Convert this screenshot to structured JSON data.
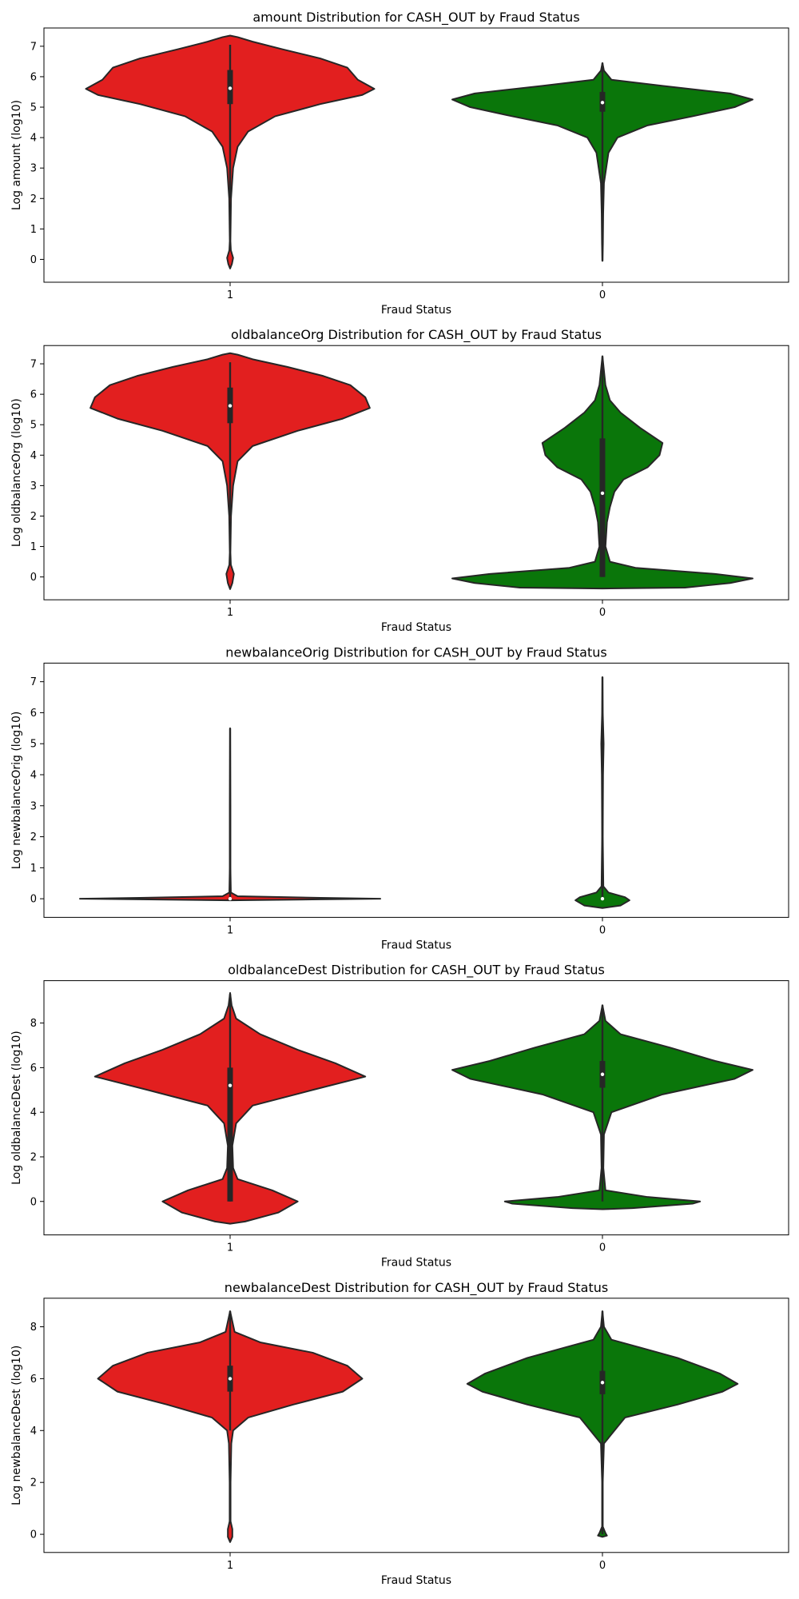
{
  "colors": {
    "fraud": "#e21f1f",
    "legit": "#0a760a",
    "edge": "#262626"
  },
  "chart_data": [
    {
      "type": "violin",
      "title": "amount Distribution for CASH_OUT by Fraud Status",
      "xlabel": "Fraud Status",
      "ylabel": "Log amount (log10)",
      "categories": [
        "1",
        "0"
      ],
      "ylim": [
        -0.75,
        7.6
      ],
      "yticks": [
        0,
        1,
        2,
        3,
        4,
        5,
        6,
        7
      ],
      "series": [
        {
          "category": "1",
          "color": "#e21f1f",
          "q1": 5.1,
          "median": 5.62,
          "q3": 6.22,
          "whisker_low": 2.0,
          "whisker_high": 7.05,
          "profile": [
            [
              -0.3,
              0.0
            ],
            [
              -0.15,
              0.012
            ],
            [
              0.05,
              0.02
            ],
            [
              0.3,
              0.005
            ],
            [
              0.6,
              0.002
            ],
            [
              2.0,
              0.006
            ],
            [
              3.0,
              0.02
            ],
            [
              3.7,
              0.05
            ],
            [
              4.2,
              0.12
            ],
            [
              4.7,
              0.3
            ],
            [
              5.1,
              0.6
            ],
            [
              5.4,
              0.88
            ],
            [
              5.6,
              0.96
            ],
            [
              5.9,
              0.85
            ],
            [
              6.3,
              0.78
            ],
            [
              6.6,
              0.6
            ],
            [
              6.9,
              0.35
            ],
            [
              7.15,
              0.15
            ],
            [
              7.3,
              0.05
            ],
            [
              7.35,
              0.0
            ]
          ]
        },
        {
          "category": "0",
          "color": "#0a760a",
          "q1": 4.85,
          "median": 5.15,
          "q3": 5.5,
          "whisker_low": -0.05,
          "whisker_high": 6.45,
          "profile": [
            [
              -0.05,
              0.0
            ],
            [
              0.5,
              0.003
            ],
            [
              1.5,
              0.005
            ],
            [
              2.5,
              0.01
            ],
            [
              3.5,
              0.04
            ],
            [
              4.0,
              0.1
            ],
            [
              4.4,
              0.3
            ],
            [
              4.7,
              0.6
            ],
            [
              5.0,
              0.88
            ],
            [
              5.25,
              1.0
            ],
            [
              5.45,
              0.85
            ],
            [
              5.7,
              0.4
            ],
            [
              5.9,
              0.06
            ],
            [
              6.2,
              0.01
            ],
            [
              6.45,
              0.0
            ]
          ]
        }
      ]
    },
    {
      "type": "violin",
      "title": "oldbalanceOrg Distribution for CASH_OUT by Fraud Status",
      "xlabel": "Fraud Status",
      "ylabel": "Log oldbalanceOrg (log10)",
      "categories": [
        "1",
        "0"
      ],
      "ylim": [
        -0.75,
        7.6
      ],
      "yticks": [
        0,
        1,
        2,
        3,
        4,
        5,
        6,
        7
      ],
      "series": [
        {
          "category": "1",
          "color": "#e21f1f",
          "q1": 5.05,
          "median": 5.62,
          "q3": 6.22,
          "whisker_low": 2.0,
          "whisker_high": 7.05,
          "profile": [
            [
              -0.4,
              0.0
            ],
            [
              -0.2,
              0.015
            ],
            [
              0.1,
              0.025
            ],
            [
              0.4,
              0.005
            ],
            [
              0.8,
              0.002
            ],
            [
              2.0,
              0.006
            ],
            [
              3.0,
              0.02
            ],
            [
              3.8,
              0.05
            ],
            [
              4.3,
              0.15
            ],
            [
              4.8,
              0.45
            ],
            [
              5.2,
              0.75
            ],
            [
              5.55,
              0.93
            ],
            [
              5.9,
              0.9
            ],
            [
              6.3,
              0.8
            ],
            [
              6.6,
              0.62
            ],
            [
              6.9,
              0.38
            ],
            [
              7.15,
              0.15
            ],
            [
              7.3,
              0.05
            ],
            [
              7.35,
              0.0
            ]
          ]
        },
        {
          "category": "0",
          "color": "#0a760a",
          "q1": 0.0,
          "median": 2.75,
          "q3": 4.55,
          "whisker_low": 0.0,
          "whisker_high": 7.25,
          "profile": [
            [
              -0.38,
              0.0
            ],
            [
              -0.35,
              0.55
            ],
            [
              -0.2,
              0.85
            ],
            [
              -0.05,
              1.0
            ],
            [
              0.1,
              0.75
            ],
            [
              0.3,
              0.22
            ],
            [
              0.5,
              0.05
            ],
            [
              1.0,
              0.02
            ],
            [
              1.8,
              0.03
            ],
            [
              2.3,
              0.05
            ],
            [
              2.8,
              0.08
            ],
            [
              3.2,
              0.14
            ],
            [
              3.6,
              0.3
            ],
            [
              4.0,
              0.38
            ],
            [
              4.4,
              0.4
            ],
            [
              4.9,
              0.25
            ],
            [
              5.4,
              0.12
            ],
            [
              5.8,
              0.05
            ],
            [
              6.3,
              0.02
            ],
            [
              7.25,
              0.0
            ]
          ]
        }
      ]
    },
    {
      "type": "violin",
      "title": "newbalanceOrig Distribution for CASH_OUT by Fraud Status",
      "xlabel": "Fraud Status",
      "ylabel": "Log newbalanceOrig (log10)",
      "categories": [
        "1",
        "0"
      ],
      "ylim": [
        -0.6,
        7.6
      ],
      "yticks": [
        0,
        1,
        2,
        3,
        4,
        5,
        6,
        7
      ],
      "series": [
        {
          "category": "1",
          "color": "#e21f1f",
          "q1": 0.0,
          "median": 0.0,
          "q3": 0.0,
          "whisker_low": 0.0,
          "whisker_high": 5.5,
          "profile": [
            [
              -0.05,
              0.0
            ],
            [
              -0.02,
              0.6
            ],
            [
              0.0,
              1.0
            ],
            [
              0.03,
              0.6
            ],
            [
              0.08,
              0.05
            ],
            [
              0.2,
              0.005
            ],
            [
              1.0,
              0.002
            ],
            [
              3.0,
              0.002
            ],
            [
              5.5,
              0.0
            ]
          ]
        },
        {
          "category": "0",
          "color": "#0a760a",
          "q1": 0.0,
          "median": 0.0,
          "q3": 0.0,
          "whisker_low": 0.0,
          "whisker_high": 7.15,
          "profile": [
            [
              -0.3,
              0.0
            ],
            [
              -0.22,
              0.12
            ],
            [
              -0.05,
              0.18
            ],
            [
              0.05,
              0.15
            ],
            [
              0.2,
              0.04
            ],
            [
              0.4,
              0.006
            ],
            [
              2.0,
              0.002
            ],
            [
              4.0,
              0.004
            ],
            [
              5.0,
              0.008
            ],
            [
              6.0,
              0.002
            ],
            [
              7.15,
              0.0
            ]
          ]
        }
      ]
    },
    {
      "type": "violin",
      "title": "oldbalanceDest Distribution for CASH_OUT by Fraud Status",
      "xlabel": "Fraud Status",
      "ylabel": "Log oldbalanceDest (log10)",
      "categories": [
        "1",
        "0"
      ],
      "ylim": [
        -1.5,
        9.9
      ],
      "yticks": [
        0,
        2,
        4,
        6,
        8
      ],
      "series": [
        {
          "category": "1",
          "color": "#e21f1f",
          "q1": 0.0,
          "median": 5.2,
          "q3": 6.0,
          "whisker_low": 0.0,
          "whisker_high": 9.3,
          "profile": [
            [
              -1.0,
              0.0
            ],
            [
              -0.9,
              0.1
            ],
            [
              -0.5,
              0.32
            ],
            [
              0.0,
              0.45
            ],
            [
              0.5,
              0.28
            ],
            [
              1.0,
              0.05
            ],
            [
              1.5,
              0.02
            ],
            [
              2.5,
              0.015
            ],
            [
              3.5,
              0.04
            ],
            [
              4.3,
              0.15
            ],
            [
              5.0,
              0.55
            ],
            [
              5.6,
              0.9
            ],
            [
              6.2,
              0.7
            ],
            [
              6.8,
              0.45
            ],
            [
              7.5,
              0.2
            ],
            [
              8.2,
              0.04
            ],
            [
              8.8,
              0.01
            ],
            [
              9.35,
              0.0
            ]
          ]
        },
        {
          "category": "0",
          "color": "#0a760a",
          "q1": 5.1,
          "median": 5.7,
          "q3": 6.3,
          "whisker_low": 0.0,
          "whisker_high": 8.8,
          "profile": [
            [
              -0.35,
              0.0
            ],
            [
              -0.3,
              0.2
            ],
            [
              -0.1,
              0.6
            ],
            [
              0.0,
              0.65
            ],
            [
              0.2,
              0.3
            ],
            [
              0.5,
              0.02
            ],
            [
              1.5,
              0.006
            ],
            [
              3.0,
              0.01
            ],
            [
              4.0,
              0.06
            ],
            [
              4.8,
              0.4
            ],
            [
              5.5,
              0.88
            ],
            [
              5.9,
              1.0
            ],
            [
              6.3,
              0.75
            ],
            [
              6.9,
              0.45
            ],
            [
              7.5,
              0.12
            ],
            [
              8.1,
              0.02
            ],
            [
              8.8,
              0.0
            ]
          ]
        }
      ]
    },
    {
      "type": "violin",
      "title": "newbalanceDest Distribution for CASH_OUT by Fraud Status",
      "xlabel": "Fraud Status",
      "ylabel": "Log newbalanceDest (log10)",
      "categories": [
        "1",
        "0"
      ],
      "ylim": [
        -0.7,
        9.1
      ],
      "yticks": [
        0,
        2,
        4,
        6,
        8
      ],
      "series": [
        {
          "category": "1",
          "color": "#e21f1f",
          "q1": 5.5,
          "median": 6.0,
          "q3": 6.5,
          "whisker_low": 4.0,
          "whisker_high": 8.6,
          "profile": [
            [
              -0.3,
              0.0
            ],
            [
              -0.1,
              0.015
            ],
            [
              0.2,
              0.015
            ],
            [
              0.5,
              0.003
            ],
            [
              2.0,
              0.003
            ],
            [
              3.5,
              0.008
            ],
            [
              4.0,
              0.02
            ],
            [
              4.5,
              0.12
            ],
            [
              5.0,
              0.42
            ],
            [
              5.5,
              0.75
            ],
            [
              6.0,
              0.88
            ],
            [
              6.5,
              0.78
            ],
            [
              7.0,
              0.55
            ],
            [
              7.4,
              0.2
            ],
            [
              7.8,
              0.03
            ],
            [
              8.6,
              0.0
            ]
          ]
        },
        {
          "category": "0",
          "color": "#0a760a",
          "q1": 5.4,
          "median": 5.85,
          "q3": 6.3,
          "whisker_low": 0.0,
          "whisker_high": 8.6,
          "profile": [
            [
              -0.1,
              0.0
            ],
            [
              -0.05,
              0.03
            ],
            [
              0.05,
              0.02
            ],
            [
              0.3,
              0.002
            ],
            [
              2.0,
              0.002
            ],
            [
              3.5,
              0.01
            ],
            [
              4.5,
              0.15
            ],
            [
              5.0,
              0.5
            ],
            [
              5.5,
              0.8
            ],
            [
              5.8,
              0.9
            ],
            [
              6.2,
              0.78
            ],
            [
              6.8,
              0.5
            ],
            [
              7.2,
              0.25
            ],
            [
              7.5,
              0.06
            ],
            [
              8.0,
              0.01
            ],
            [
              8.6,
              0.0
            ]
          ]
        }
      ]
    }
  ]
}
